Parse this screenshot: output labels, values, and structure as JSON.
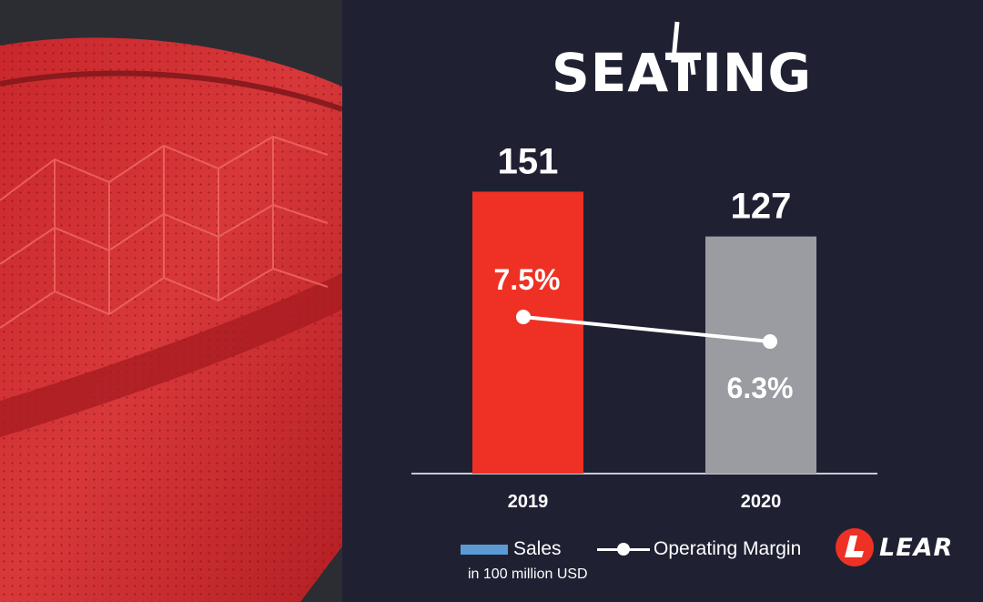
{
  "logo": {
    "text": "SEATING",
    "icon": "seat-icon"
  },
  "brand": {
    "text": "LEAR",
    "icon": "lear-l-icon"
  },
  "colors": {
    "background": "#1f2133",
    "bar_2019": "#ee3124",
    "bar_2020": "#9a9ca2",
    "legend_sales": "#5b9bd5",
    "line": "#ffffff"
  },
  "legend": {
    "sales": "Sales",
    "margin": "Operating Margin"
  },
  "unit_note": "in 100 million USD",
  "chart_data": {
    "type": "bar",
    "categories": [
      "2019",
      "2020"
    ],
    "series": [
      {
        "name": "Sales",
        "values": [
          151,
          127
        ],
        "labels": [
          "151",
          "127"
        ]
      },
      {
        "name": "Operating Margin",
        "type": "line",
        "values": [
          7.5,
          6.3
        ],
        "labels": [
          "7.5%",
          "6.3%"
        ]
      }
    ],
    "title": "",
    "xlabel": "",
    "ylabel": "",
    "grid": false,
    "legend_position": "bottom"
  }
}
